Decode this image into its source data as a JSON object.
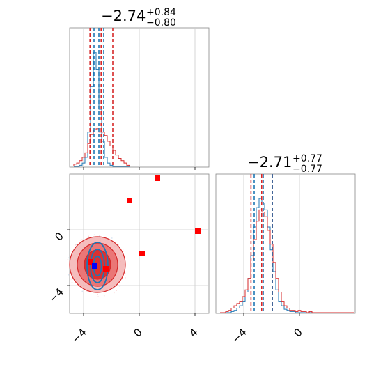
{
  "chart_data": {
    "type": "corner",
    "panels": [
      {
        "id": "hist1",
        "kind": "histogram",
        "title": {
          "main": "−2.74",
          "sup": "+0.84",
          "sub": "−0.80"
        },
        "x_range": [
          -5,
          5
        ],
        "bins_x": [
          -4.6,
          -4.4,
          -4.2,
          -4.0,
          -3.8,
          -3.6,
          -3.4,
          -3.2,
          -3.0,
          -2.8,
          -2.6,
          -2.4,
          -2.2,
          -2.0,
          -1.8,
          -1.6,
          -1.4,
          -1.2,
          -1.0,
          -0.8
        ],
        "series": [
          {
            "color": "#1f77b4",
            "counts": [
              0,
              0,
              0.01,
              0.03,
              0.08,
              0.3,
              0.7,
              1.0,
              0.85,
              0.5,
              0.22,
              0.08,
              0.03,
              0.01,
              0,
              0,
              0,
              0,
              0,
              0
            ]
          },
          {
            "color": "#d62728",
            "counts": [
              0.02,
              0.03,
              0.05,
              0.08,
              0.12,
              0.2,
              0.28,
              0.32,
              0.33,
              0.3,
              0.3,
              0.27,
              0.22,
              0.18,
              0.14,
              0.1,
              0.07,
              0.05,
              0.03,
              0.01
            ]
          }
        ],
        "quantile_lines": [
          {
            "color": "#d62728",
            "x": [
              -3.54,
              -2.74,
              -1.9
            ]
          },
          {
            "color": "#1f77b4",
            "x": [
              -3.25,
              -2.9,
              -2.55
            ]
          }
        ]
      },
      {
        "id": "scatter",
        "kind": "2d-density",
        "x_range": [
          -5,
          5
        ],
        "y_range": [
          -6,
          4
        ],
        "xticks": [
          "−4",
          "0",
          "4"
        ],
        "yticks": [
          "0",
          "−4"
        ],
        "contours": [
          {
            "color": "#d62728",
            "cx": -3.0,
            "cy": -2.5,
            "rx": [
              2.0,
              1.45,
              0.95
            ],
            "ry": [
              2.0,
              1.55,
              1.05
            ]
          },
          {
            "color": "#1f77b4",
            "cx": -3.0,
            "cy": -2.6,
            "rx": [
              0.75,
              0.5,
              0.28
            ],
            "ry": [
              1.7,
              1.2,
              0.7
            ]
          }
        ],
        "red_points": [
          [
            1.3,
            3.7
          ],
          [
            -0.7,
            2.1
          ],
          [
            4.2,
            -0.1
          ],
          [
            0.2,
            -1.7
          ],
          [
            -2.4,
            -2.8
          ],
          [
            -3.5,
            -2.3
          ]
        ],
        "blue_points": [
          [
            -3.2,
            -2.6
          ]
        ]
      },
      {
        "id": "hist2",
        "kind": "histogram",
        "title": {
          "main": "−2.71",
          "sup": "+0.77",
          "sub": "−0.77"
        },
        "x_range": [
          -6,
          4
        ],
        "xticks": [
          "−4",
          "0"
        ],
        "bins_x": [
          -5.6,
          -5.4,
          -5.2,
          -5.0,
          -4.8,
          -4.6,
          -4.4,
          -4.2,
          -4.0,
          -3.8,
          -3.6,
          -3.4,
          -3.2,
          -3.0,
          -2.8,
          -2.6,
          -2.4,
          -2.2,
          -2.0,
          -1.8,
          -1.6,
          -1.4,
          -1.2,
          -1.0,
          -0.8,
          -0.6,
          -0.4,
          -0.2,
          0.0,
          0.2,
          0.4,
          0.6,
          0.8,
          1.0,
          1.2,
          1.4,
          1.6,
          1.8,
          2.0,
          2.2,
          2.4,
          2.6,
          2.8,
          3.0,
          3.2,
          3.4,
          3.6,
          3.8
        ],
        "series": [
          {
            "color": "#1f77b4",
            "counts": [
              0,
              0,
              0,
              0,
              0.01,
              0.02,
              0.04,
              0.06,
              0.1,
              0.18,
              0.3,
              0.5,
              0.75,
              0.92,
              1.0,
              0.96,
              0.9,
              0.75,
              0.55,
              0.36,
              0.2,
              0.1,
              0.06,
              0.03,
              0.02,
              0.01,
              0.01,
              0,
              0,
              0,
              0,
              0,
              0,
              0,
              0,
              0,
              0,
              0,
              0,
              0,
              0,
              0,
              0,
              0,
              0,
              0,
              0,
              0
            ]
          },
          {
            "color": "#d62728",
            "counts": [
              0,
              0,
              0.01,
              0.02,
              0.04,
              0.06,
              0.08,
              0.1,
              0.14,
              0.2,
              0.3,
              0.46,
              0.64,
              0.8,
              0.9,
              0.88,
              0.84,
              0.72,
              0.6,
              0.44,
              0.3,
              0.18,
              0.1,
              0.06,
              0.04,
              0.02,
              0.02,
              0.01,
              0.02,
              0.01,
              0.01,
              0,
              0.01,
              0,
              0,
              0,
              0,
              0,
              0,
              0,
              0,
              0,
              0,
              0,
              0,
              0,
              0,
              0
            ]
          }
        ],
        "quantile_lines": [
          {
            "color": "#d62728",
            "x": [
              -3.48,
              -2.71,
              -1.94
            ]
          },
          {
            "color": "#1f77b4",
            "x": [
              -3.25,
              -2.6,
              -1.95
            ]
          }
        ]
      }
    ]
  }
}
